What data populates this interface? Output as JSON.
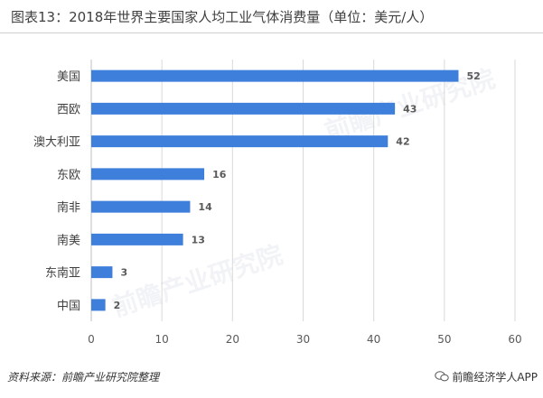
{
  "title": "图表13：2018年世界主要国家人均工业气体消费量（单位：美元/人）",
  "source": "资料来源：前瞻产业研究院整理",
  "credit": "前瞻经济学人APP",
  "watermark": "前瞻产业研究院",
  "colors": {
    "bar": "#3f7fdc",
    "grid": "#d9d9d9",
    "axis": "#bfbfbf"
  },
  "chart_data": {
    "type": "bar",
    "orientation": "horizontal",
    "categories": [
      "美国",
      "西欧",
      "澳大利亚",
      "东欧",
      "南非",
      "南美",
      "东南亚",
      "中国"
    ],
    "values": [
      52,
      43,
      42,
      16,
      14,
      13,
      3,
      2
    ],
    "xlim": [
      0,
      60
    ],
    "xticks": [
      0,
      10,
      20,
      30,
      40,
      50,
      60
    ],
    "grid": true
  }
}
